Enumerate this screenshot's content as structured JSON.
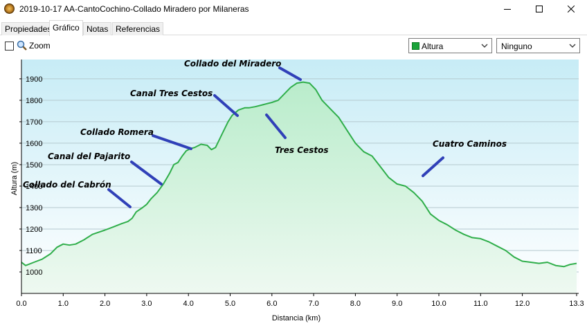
{
  "window": {
    "title": "2019-10-17 AA-CantoCochino-Collado Miradero por Milaneras",
    "icon": "globe-compass-icon",
    "controls": [
      "minimize-icon",
      "maximize-icon",
      "close-icon"
    ]
  },
  "tabs": [
    {
      "label": "Propiedades",
      "active": false
    },
    {
      "label": "Gráfico",
      "active": true
    },
    {
      "label": "Notas",
      "active": false
    },
    {
      "label": "Referencias",
      "active": false
    }
  ],
  "toolbar": {
    "zoom_label": "Zoom",
    "zoom_checked": false,
    "series_select": {
      "value": "Altura",
      "color": "#1aa33a"
    },
    "second_select": {
      "value": "Ninguno"
    }
  },
  "chart_data": {
    "type": "area",
    "xlabel": "Distancia  (km)",
    "ylabel": "Altura (m)",
    "xlim": [
      0,
      13.35
    ],
    "ylim": [
      900,
      1990
    ],
    "x_ticks": [
      0,
      1,
      2,
      3,
      4,
      5,
      6,
      7,
      8,
      9,
      10,
      11,
      12,
      13.3
    ],
    "x_tick_labels": [
      "0.0",
      "1.0",
      "2.0",
      "3.0",
      "4.0",
      "5.0",
      "6.0",
      "7.0",
      "8.0",
      "9.0",
      "10.0",
      "11.0",
      "12.0",
      "13.3"
    ],
    "y_ticks": [
      1000,
      1100,
      1200,
      1300,
      1400,
      1500,
      1600,
      1700,
      1800,
      1900
    ],
    "y_tick_labels": [
      "1000",
      "1100",
      "1200",
      "1300",
      "1400",
      "1500",
      "1600",
      "1700",
      "1800",
      "1900"
    ],
    "grid": true,
    "line_color": "#2fae4a",
    "series": [
      {
        "x": [
          0,
          0.1,
          0.3,
          0.5,
          0.7,
          0.85,
          1.0,
          1.15,
          1.3,
          1.5,
          1.7,
          1.85,
          2.0,
          2.2,
          2.4,
          2.55,
          2.65,
          2.75,
          2.9,
          3.0,
          3.1,
          3.25,
          3.4,
          3.55,
          3.65,
          3.75,
          3.85,
          3.95,
          4.05,
          4.15,
          4.3,
          4.45,
          4.55,
          4.65,
          4.8,
          4.95,
          5.05,
          5.2,
          5.35,
          5.45,
          5.6,
          5.8,
          6.0,
          6.15,
          6.3,
          6.45,
          6.6,
          6.75,
          6.9,
          7.05,
          7.2,
          7.4,
          7.6,
          7.8,
          8.0,
          8.2,
          8.4,
          8.6,
          8.8,
          9.0,
          9.2,
          9.4,
          9.6,
          9.8,
          10.0,
          10.2,
          10.4,
          10.6,
          10.8,
          11.0,
          11.2,
          11.4,
          11.6,
          11.8,
          12.0,
          12.2,
          12.4,
          12.6,
          12.8,
          13.0,
          13.15,
          13.3
        ],
        "y": [
          1045,
          1030,
          1045,
          1060,
          1085,
          1115,
          1130,
          1125,
          1130,
          1150,
          1175,
          1185,
          1195,
          1210,
          1225,
          1235,
          1250,
          1280,
          1300,
          1315,
          1340,
          1370,
          1410,
          1460,
          1500,
          1510,
          1540,
          1565,
          1575,
          1580,
          1595,
          1590,
          1570,
          1580,
          1640,
          1700,
          1730,
          1755,
          1765,
          1765,
          1770,
          1780,
          1790,
          1800,
          1830,
          1860,
          1880,
          1885,
          1880,
          1850,
          1800,
          1760,
          1720,
          1660,
          1600,
          1560,
          1540,
          1490,
          1440,
          1410,
          1400,
          1370,
          1330,
          1270,
          1240,
          1220,
          1195,
          1175,
          1160,
          1155,
          1140,
          1120,
          1100,
          1070,
          1050,
          1045,
          1040,
          1045,
          1030,
          1025,
          1035,
          1040
        ]
      }
    ],
    "annotations": [
      {
        "text": "Collado del Cabrón"
      },
      {
        "text": "Canal del Pajarito"
      },
      {
        "text": "Collado Romera"
      },
      {
        "text": "Canal Tres Cestos"
      },
      {
        "text": "Collado del Miradero"
      },
      {
        "text": "Tres Cestos"
      },
      {
        "text": "Cuatro Caminos"
      }
    ]
  }
}
